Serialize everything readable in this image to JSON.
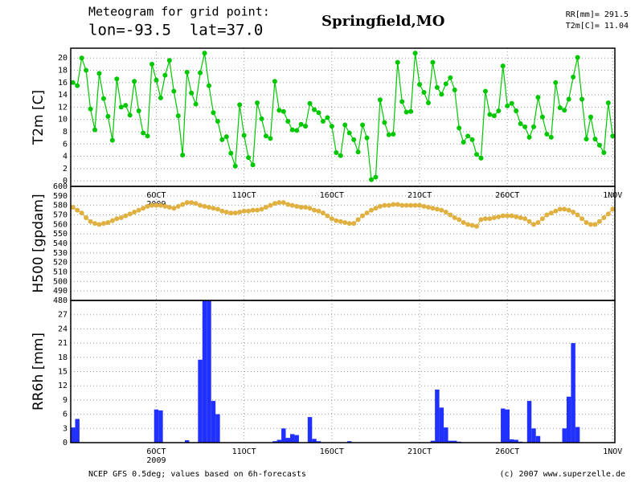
{
  "header": {
    "title": "Meteogram for grid point:",
    "coords": "lon=-93.5  lat=37.0",
    "location": "Springfield,MO",
    "summary": [
      "RR[mm]= 291.5",
      "T2m[C]= 11.04"
    ]
  },
  "footer": {
    "source": "NCEP GFS 0.5deg; values based on 6h-forecasts",
    "credit": "(c) 2007 www.superzelle.de"
  },
  "chart_data": [
    {
      "type": "line",
      "ylabel": "T2m [C]",
      "color": "#00c800",
      "markers": true,
      "grid": true,
      "xlim": [
        -0.5,
        123.5
      ],
      "ylim": [
        -0.9,
        21.6
      ],
      "yticks": [
        0,
        2,
        4,
        6,
        8,
        10,
        12,
        14,
        16,
        18,
        20
      ],
      "xticks": [
        {
          "value": 19,
          "label": "6OCT"
        },
        {
          "value": 39,
          "label": "11OCT"
        },
        {
          "value": 59,
          "label": "16OCT"
        },
        {
          "value": 79,
          "label": "21OCT"
        },
        {
          "value": 99,
          "label": "26OCT"
        },
        {
          "value": 123,
          "label": "1NOV"
        }
      ],
      "xtick_year": "2009",
      "values": [
        16,
        15.5,
        20,
        18,
        11.7,
        8.3,
        17.5,
        13.4,
        10.5,
        6.6,
        16.6,
        12,
        12.3,
        10.7,
        16.2,
        11.4,
        7.8,
        7.3,
        19,
        16.4,
        13.5,
        17.2,
        19.6,
        14.6,
        10.6,
        4.2,
        17.7,
        14.3,
        12.5,
        17.6,
        20.8,
        15.5,
        11.1,
        9.7,
        6.7,
        7.2,
        4.5,
        2.4,
        12.4,
        7.4,
        3.8,
        2.6,
        12.7,
        10.1,
        7.3,
        6.9,
        16.2,
        11.5,
        11.3,
        9.7,
        8.3,
        8.2,
        9.2,
        8.9,
        12.6,
        11.6,
        11.1,
        9.7,
        10.3,
        8.9,
        4.6,
        4.1,
        9.1,
        7.8,
        6.7,
        4.7,
        9.1,
        7.0,
        0.2,
        0.6,
        13.2,
        9.5,
        7.5,
        7.6,
        19.3,
        12.9,
        11.2,
        11.3,
        20.8,
        15.7,
        14.4,
        12.7,
        19.3,
        15.2,
        14.1,
        15.8,
        16.8,
        14.8,
        8.6,
        6.3,
        7.3,
        6.7,
        4.3,
        3.7,
        14.6,
        10.8,
        10.6,
        11.4,
        18.7,
        12.2,
        12.6,
        11.4,
        9.3,
        8.8,
        7.1,
        8.8,
        13.6,
        10.4,
        7.6,
        7.1,
        16,
        11.9,
        11.5,
        13.3,
        16.9,
        20.1,
        13.3,
        6.8,
        10.4,
        6.8,
        5.8,
        4.6,
        12.7,
        7.3
      ]
    },
    {
      "type": "line",
      "ylabel": "H500 [gpdam]",
      "color": "#e0b040",
      "markers": true,
      "grid": true,
      "xlim": [
        -0.5,
        123.5
      ],
      "ylim": [
        480,
        600
      ],
      "yticks": [
        480,
        490,
        500,
        510,
        520,
        530,
        540,
        550,
        560,
        570,
        580,
        590,
        600
      ],
      "values": [
        578,
        575,
        572,
        567,
        563,
        561,
        560,
        561,
        562,
        564,
        566,
        567,
        569,
        571,
        573,
        575,
        577,
        579,
        580,
        580,
        580,
        579,
        578,
        577,
        579,
        581,
        583,
        583,
        582,
        580,
        579,
        578,
        577,
        576,
        574,
        573,
        572,
        572,
        573,
        574,
        574,
        575,
        575,
        576,
        578,
        580,
        582,
        583,
        583,
        581,
        580,
        579,
        578,
        578,
        577,
        575,
        574,
        572,
        569,
        566,
        564,
        563,
        562,
        561,
        561,
        565,
        569,
        572,
        575,
        577,
        579,
        580,
        580,
        581,
        581,
        580,
        580,
        580,
        580,
        580,
        579,
        578,
        577,
        576,
        575,
        573,
        570,
        567,
        565,
        562,
        560,
        559,
        558,
        565,
        566,
        566,
        567,
        568,
        569,
        569,
        569,
        568,
        567,
        566,
        563,
        560,
        562,
        566,
        570,
        572,
        574,
        576,
        576,
        575,
        573,
        570,
        566,
        562,
        560,
        560,
        563,
        567,
        571,
        576
      ]
    },
    {
      "type": "bar",
      "ylabel": "RR6h [mm]",
      "color": "#2030ff",
      "grid": true,
      "xlim": [
        -0.5,
        123.5
      ],
      "ylim": [
        0,
        30
      ],
      "yticks": [
        0,
        3,
        6,
        9,
        12,
        15,
        18,
        21,
        24,
        27
      ],
      "xticks": [
        {
          "value": 19,
          "label": "6OCT"
        },
        {
          "value": 39,
          "label": "11OCT"
        },
        {
          "value": 59,
          "label": "16OCT"
        },
        {
          "value": 79,
          "label": "21OCT"
        },
        {
          "value": 99,
          "label": "26OCT"
        },
        {
          "value": 123,
          "label": "1NOV"
        }
      ],
      "xtick_year": "2009",
      "values": [
        3.2,
        5,
        0,
        0,
        0,
        0,
        0,
        0,
        0,
        0,
        0,
        0,
        0,
        0,
        0,
        0,
        0,
        0,
        0,
        7,
        6.8,
        0,
        0,
        0,
        0,
        0,
        0.5,
        0,
        0,
        17.5,
        30,
        30,
        8.8,
        6,
        0,
        0,
        0,
        0,
        0,
        0,
        0,
        0,
        0,
        0,
        0,
        0,
        0.3,
        0.6,
        3,
        1,
        1.8,
        1.6,
        0,
        0,
        5.4,
        0.8,
        0.3,
        0,
        0,
        0,
        0,
        0,
        0,
        0.3,
        0,
        0,
        0,
        0,
        0,
        0,
        0,
        0,
        0,
        0,
        0,
        0,
        0,
        0,
        0,
        0,
        0,
        0,
        0.4,
        11.2,
        7.4,
        3.2,
        0.4,
        0.4,
        0.2,
        0,
        0,
        0,
        0,
        0,
        0,
        0,
        0,
        0,
        7.2,
        7,
        0.7,
        0.6,
        0.2,
        0,
        8.8,
        3,
        1.4,
        0,
        0,
        0,
        0,
        0,
        3,
        9.7,
        21,
        3.3,
        0,
        0,
        0,
        0,
        0,
        0,
        0,
        0
      ]
    }
  ]
}
